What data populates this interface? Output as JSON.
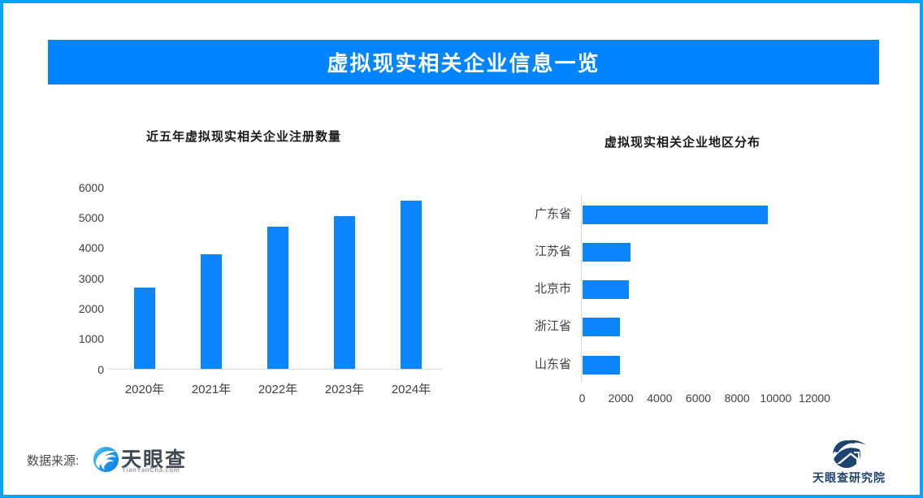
{
  "header": {
    "title": "虚拟现实相关企业信息一览"
  },
  "colors": {
    "frame": "#09A2F5",
    "banner": "#0084FF",
    "bar": "#0A85FB",
    "axis_line": "#D9D9D9",
    "heading_text": "#1A1A1A",
    "tick_text": "#404040",
    "source_text": "#4A4A4A",
    "tyc_name_text": "#3E4A54",
    "tyc_domain_text": "#9AA0A6",
    "institute_text": "#1E4370"
  },
  "chart_data": [
    {
      "type": "bar",
      "orientation": "vertical",
      "title": "近五年虚拟现实相关企业注册数量",
      "categories": [
        "2020年",
        "2021年",
        "2022年",
        "2023年",
        "2024年"
      ],
      "values": [
        2700,
        3800,
        4700,
        5050,
        5550
      ],
      "ylim": [
        0,
        6000
      ],
      "yticks": [
        0,
        1000,
        2000,
        3000,
        4000,
        5000,
        6000
      ],
      "grid": false,
      "legend": false
    },
    {
      "type": "bar",
      "orientation": "horizontal",
      "title": "虚拟现实相关企业地区分布",
      "categories": [
        "广东省",
        "江苏省",
        "北京市",
        "浙江省",
        "山东省"
      ],
      "values": [
        9600,
        2500,
        2400,
        1950,
        1950
      ],
      "xlim": [
        0,
        12000
      ],
      "xticks": [
        0,
        2000,
        4000,
        6000,
        8000,
        10000,
        12000
      ],
      "grid": false,
      "legend": false
    }
  ],
  "footer": {
    "source_label": "数据来源:",
    "tianyancha": {
      "name": "天眼查",
      "domain": "TianYanCha.com"
    },
    "institute": {
      "name": "天眼查研究院"
    }
  }
}
